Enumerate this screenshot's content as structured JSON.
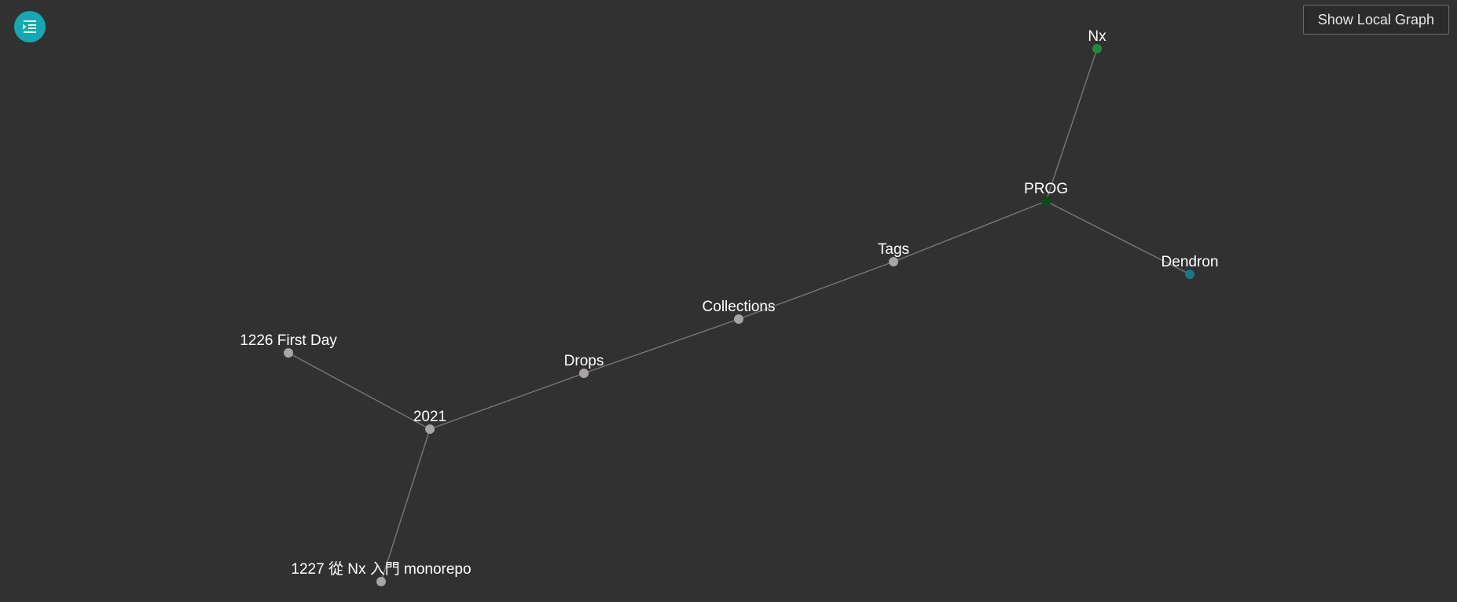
{
  "toolbar": {
    "menu_icon": "list-indent-icon",
    "show_local_graph_label": "Show Local Graph"
  },
  "colors": {
    "background": "#313131",
    "menu_button": "#14a9b2",
    "node_default": "#a8a4a8",
    "node_nx": "#1f8a3a",
    "node_prog": "#0a4a1a",
    "node_dendron": "#147a86",
    "edge": "#777777"
  },
  "graph": {
    "nodes": [
      {
        "id": "nx",
        "label": "Nx",
        "color_key": "node_nx"
      },
      {
        "id": "prog",
        "label": "PROG",
        "color_key": "node_prog"
      },
      {
        "id": "dendron",
        "label": "Dendron",
        "color_key": "node_dendron"
      },
      {
        "id": "tags",
        "label": "Tags",
        "color_key": "node_default"
      },
      {
        "id": "collections",
        "label": "Collections",
        "color_key": "node_default"
      },
      {
        "id": "drops",
        "label": "Drops",
        "color_key": "node_default"
      },
      {
        "id": "y2021",
        "label": "2021",
        "color_key": "node_default"
      },
      {
        "id": "firstday",
        "label": "1226 First Day",
        "color_key": "node_default"
      },
      {
        "id": "monorepo",
        "label": "1227 從 Nx 入門 monorepo",
        "color_key": "node_default"
      }
    ],
    "edges": [
      [
        "prog",
        "nx"
      ],
      [
        "prog",
        "dendron"
      ],
      [
        "prog",
        "tags"
      ],
      [
        "tags",
        "collections"
      ],
      [
        "collections",
        "drops"
      ],
      [
        "drops",
        "y2021"
      ],
      [
        "y2021",
        "firstday"
      ],
      [
        "y2021",
        "monorepo"
      ]
    ]
  }
}
